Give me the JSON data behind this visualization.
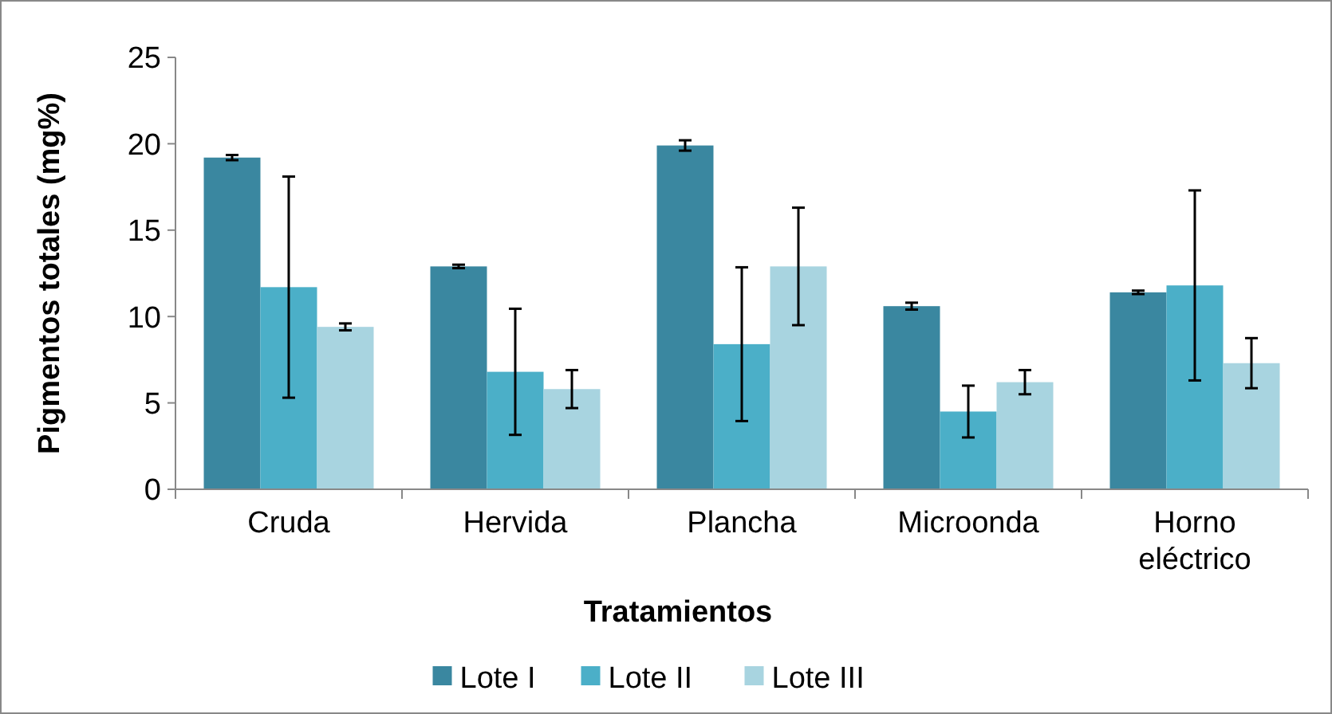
{
  "chart_data": {
    "type": "bar",
    "xlabel": "Tratamientos",
    "ylabel": "Pigmentos totales (mg%)",
    "categories": [
      "Cruda",
      "Hervida",
      "Plancha",
      "Microonda",
      "Horno eléctrico"
    ],
    "series": [
      {
        "name": "Lote I",
        "color": "#3a87a0",
        "values": [
          19.2,
          12.9,
          19.9,
          10.6,
          11.4
        ],
        "errors": [
          0.15,
          0.1,
          0.3,
          0.2,
          0.1
        ]
      },
      {
        "name": "Lote II",
        "color": "#4bafc8",
        "values": [
          11.7,
          6.8,
          8.4,
          4.5,
          11.8
        ],
        "errors": [
          6.4,
          3.65,
          4.45,
          1.5,
          5.5
        ]
      },
      {
        "name": "Lote III",
        "color": "#a8d4e0",
        "values": [
          9.4,
          5.8,
          12.9,
          6.2,
          7.3
        ],
        "errors": [
          0.2,
          1.1,
          3.4,
          0.7,
          1.45
        ]
      }
    ],
    "ylim": [
      0,
      25
    ],
    "yticks": [
      0,
      5,
      10,
      15,
      20,
      25
    ],
    "grid": false,
    "legend": "bottom"
  }
}
